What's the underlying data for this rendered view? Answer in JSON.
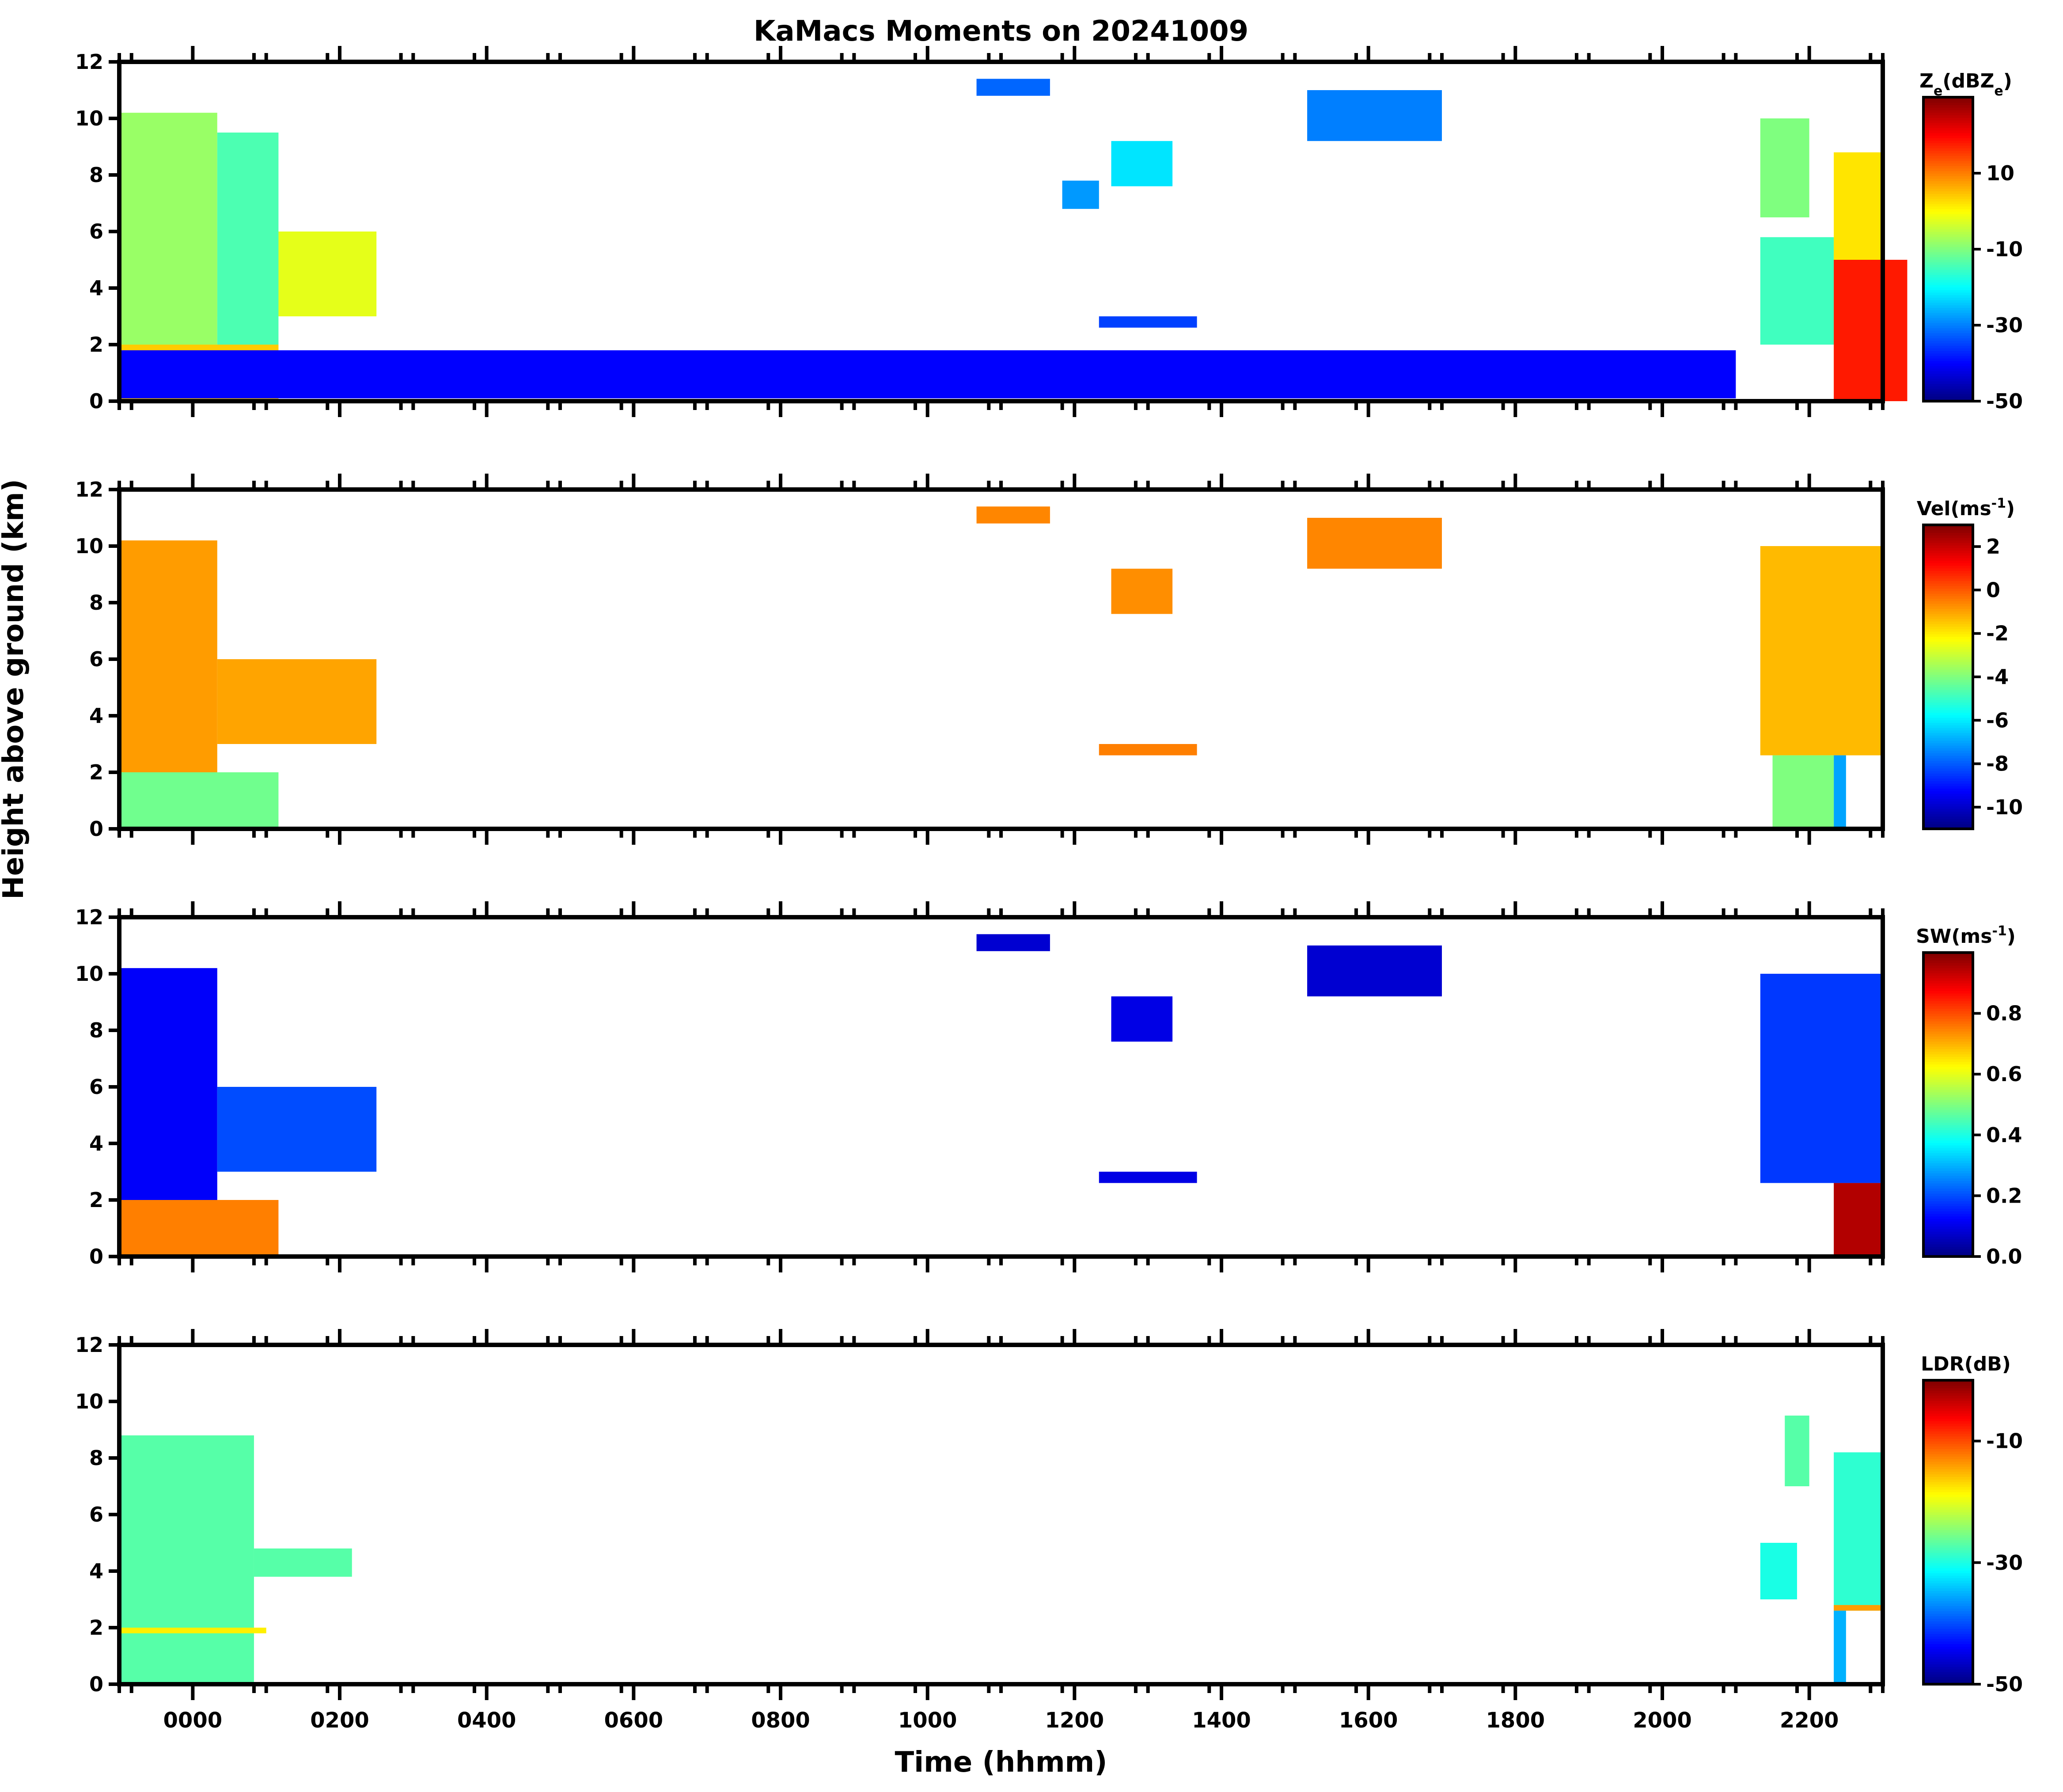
{
  "figure": {
    "title": "KaMacs Moments on 20241009",
    "xlabel": "Time (hhmm)",
    "ylabel": "Height above ground (km)"
  },
  "chart_data": [
    {
      "type": "heatmap",
      "variable": "Ze",
      "colorbar_label": "Z_e(dBZ_e)",
      "colorbar_ticks": [
        "10",
        "-10",
        "-30",
        "-50"
      ],
      "colorbar_range": [
        -50,
        30
      ],
      "colormap": [
        "#00007f",
        "#0000ff",
        "#007fff",
        "#00ffff",
        "#7fff7f",
        "#ffff00",
        "#ff7f00",
        "#ff0000",
        "#7f0000"
      ],
      "x_tick_labels": [
        "0000",
        "0200",
        "0400",
        "0600",
        "0800",
        "1000",
        "1200",
        "1400",
        "1600",
        "1800",
        "2000",
        "2200"
      ],
      "x_range": [
        -100,
        2300
      ],
      "y_ticks": [
        0,
        2,
        4,
        6,
        8,
        10,
        12
      ],
      "ylim": [
        0,
        12
      ],
      "echoes": [
        {
          "t0": -100,
          "t1": 20,
          "z0": 0,
          "z1": 10.2,
          "value": -8
        },
        {
          "t0": 20,
          "t1": 190,
          "z0": 3.0,
          "z1": 6.0,
          "value": -2
        },
        {
          "t0": -100,
          "t1": 70,
          "z0": 0,
          "z1": 2.0,
          "value": 4
        },
        {
          "t0": 20,
          "t1": 70,
          "z0": 2.0,
          "z1": 9.5,
          "value": -14
        },
        {
          "t0": 1040,
          "t1": 1140,
          "z0": 10.8,
          "z1": 11.4,
          "value": -32
        },
        {
          "t0": 1230,
          "t1": 1280,
          "z0": 7.6,
          "z1": 9.2,
          "value": -22
        },
        {
          "t0": 1150,
          "t1": 1180,
          "z0": 6.8,
          "z1": 7.8,
          "value": -28
        },
        {
          "t0": 1470,
          "t1": 1700,
          "z0": 9.2,
          "z1": 11.0,
          "value": -30
        },
        {
          "t0": 1180,
          "t1": 1340,
          "z0": 2.6,
          "z1": 3.0,
          "value": -35
        },
        {
          "t0": 2120,
          "t1": 2200,
          "z0": 6.5,
          "z1": 10.0,
          "value": -10
        },
        {
          "t0": 2080,
          "t1": 2180,
          "z0": 2.0,
          "z1": 5.8,
          "value": -15
        },
        {
          "t0": 2180,
          "t1": 2300,
          "z0": 0,
          "z1": 8.8,
          "value": 2
        },
        {
          "t0": 2180,
          "t1": 2280,
          "z0": 0,
          "z1": 5.0,
          "value": 18
        },
        {
          "t0": -100,
          "t1": 2100,
          "z0": 0.1,
          "z1": 1.8,
          "value": -40
        }
      ]
    },
    {
      "type": "heatmap",
      "variable": "Vel",
      "colorbar_label": "Vel(ms^-1)",
      "colorbar_ticks": [
        "2",
        "0",
        "-2",
        "-4",
        "-6",
        "-8",
        "-10"
      ],
      "colorbar_range": [
        -11,
        3
      ],
      "colormap": [
        "#00007f",
        "#0000ff",
        "#007fff",
        "#00ffff",
        "#7fff7f",
        "#ffff00",
        "#ff7f00",
        "#ff0000",
        "#7f0000"
      ],
      "x_tick_labels": [
        "0000",
        "0200",
        "0400",
        "0600",
        "0800",
        "1000",
        "1200",
        "1400",
        "1600",
        "1800",
        "2000",
        "2200"
      ],
      "x_range": [
        -100,
        2300
      ],
      "y_ticks": [
        0,
        2,
        4,
        6,
        8,
        10,
        12
      ],
      "ylim": [
        0,
        12
      ],
      "echoes": [
        {
          "t0": -100,
          "t1": 20,
          "z0": 2.0,
          "z1": 10.2,
          "value": -0.9
        },
        {
          "t0": 20,
          "t1": 190,
          "z0": 3.0,
          "z1": 6.0,
          "value": -1.0
        },
        {
          "t0": -100,
          "t1": 70,
          "z0": 0,
          "z1": 2.0,
          "value": -4.2
        },
        {
          "t0": 1040,
          "t1": 1140,
          "z0": 10.8,
          "z1": 11.4,
          "value": -0.6
        },
        {
          "t0": 1230,
          "t1": 1280,
          "z0": 7.6,
          "z1": 9.2,
          "value": -0.7
        },
        {
          "t0": 1470,
          "t1": 1700,
          "z0": 9.2,
          "z1": 11.0,
          "value": -0.6
        },
        {
          "t0": 1180,
          "t1": 1340,
          "z0": 2.6,
          "z1": 3.0,
          "value": -0.5
        },
        {
          "t0": 2120,
          "t1": 2300,
          "z0": 2.6,
          "z1": 10.0,
          "value": -1.3
        },
        {
          "t0": 2180,
          "t1": 2230,
          "z0": 0,
          "z1": 2.6,
          "value": -7.0
        },
        {
          "t0": 2130,
          "t1": 2180,
          "z0": 0,
          "z1": 2.6,
          "value": -4.0
        }
      ]
    },
    {
      "type": "heatmap",
      "variable": "SW",
      "colorbar_label": "SW(ms^-1)",
      "colorbar_ticks": [
        "0.8",
        "0.6",
        "0.4",
        "0.2",
        "0.0"
      ],
      "colorbar_range": [
        0,
        1
      ],
      "colormap": [
        "#00007f",
        "#0000ff",
        "#007fff",
        "#00ffff",
        "#7fff7f",
        "#ffff00",
        "#ff7f00",
        "#ff0000",
        "#7f0000"
      ],
      "x_tick_labels": [
        "0000",
        "0200",
        "0400",
        "0600",
        "0800",
        "1000",
        "1200",
        "1400",
        "1600",
        "1800",
        "2000",
        "2200"
      ],
      "x_range": [
        -100,
        2300
      ],
      "y_ticks": [
        0,
        2,
        4,
        6,
        8,
        10,
        12
      ],
      "ylim": [
        0,
        12
      ],
      "echoes": [
        {
          "t0": -100,
          "t1": 20,
          "z0": 2.0,
          "z1": 10.2,
          "value": 0.12
        },
        {
          "t0": 20,
          "t1": 190,
          "z0": 3.0,
          "z1": 6.0,
          "value": 0.2
        },
        {
          "t0": -100,
          "t1": 70,
          "z0": 0,
          "z1": 2.0,
          "value": 0.75
        },
        {
          "t0": 1040,
          "t1": 1140,
          "z0": 10.8,
          "z1": 11.4,
          "value": 0.08
        },
        {
          "t0": 1230,
          "t1": 1280,
          "z0": 7.6,
          "z1": 9.2,
          "value": 0.1
        },
        {
          "t0": 1470,
          "t1": 1700,
          "z0": 9.2,
          "z1": 11.0,
          "value": 0.08
        },
        {
          "t0": 1180,
          "t1": 1340,
          "z0": 2.6,
          "z1": 3.0,
          "value": 0.1
        },
        {
          "t0": 2120,
          "t1": 2300,
          "z0": 2.6,
          "z1": 10.0,
          "value": 0.18
        },
        {
          "t0": 2180,
          "t1": 2260,
          "z0": 0,
          "z1": 2.6,
          "value": 0.95
        }
      ]
    },
    {
      "type": "heatmap",
      "variable": "LDR",
      "colorbar_label": "LDR(dB)",
      "colorbar_ticks": [
        "-10",
        "-30",
        "-50"
      ],
      "colorbar_range": [
        -50,
        0
      ],
      "colormap": [
        "#00007f",
        "#0000ff",
        "#007fff",
        "#00ffff",
        "#7fff7f",
        "#ffff00",
        "#ff7f00",
        "#ff0000",
        "#7f0000"
      ],
      "x_tick_labels": [
        "0000",
        "0200",
        "0400",
        "0600",
        "0800",
        "1000",
        "1200",
        "1400",
        "1600",
        "1800",
        "2000",
        "2200"
      ],
      "x_range": [
        -100,
        2300
      ],
      "y_ticks": [
        0,
        2,
        4,
        6,
        8,
        10,
        12
      ],
      "ylim": [
        0,
        12
      ],
      "echoes": [
        {
          "t0": -100,
          "t1": 50,
          "z0": 0,
          "z1": 8.8,
          "value": -27
        },
        {
          "t0": 50,
          "t1": 170,
          "z0": 3.8,
          "z1": 4.8,
          "value": -27
        },
        {
          "t0": -100,
          "t1": 60,
          "z0": 1.8,
          "z1": 2.0,
          "value": -18
        },
        {
          "t0": 2140,
          "t1": 2200,
          "z0": 7.0,
          "z1": 9.5,
          "value": -27
        },
        {
          "t0": 2080,
          "t1": 2150,
          "z0": 3.0,
          "z1": 5.0,
          "value": -30
        },
        {
          "t0": 2180,
          "t1": 2300,
          "z0": 2.6,
          "z1": 8.2,
          "value": -29
        },
        {
          "t0": 2180,
          "t1": 2300,
          "z0": 2.6,
          "z1": 2.8,
          "value": -14
        },
        {
          "t0": 2180,
          "t1": 2230,
          "z0": 0,
          "z1": 2.6,
          "value": -35
        }
      ]
    }
  ]
}
